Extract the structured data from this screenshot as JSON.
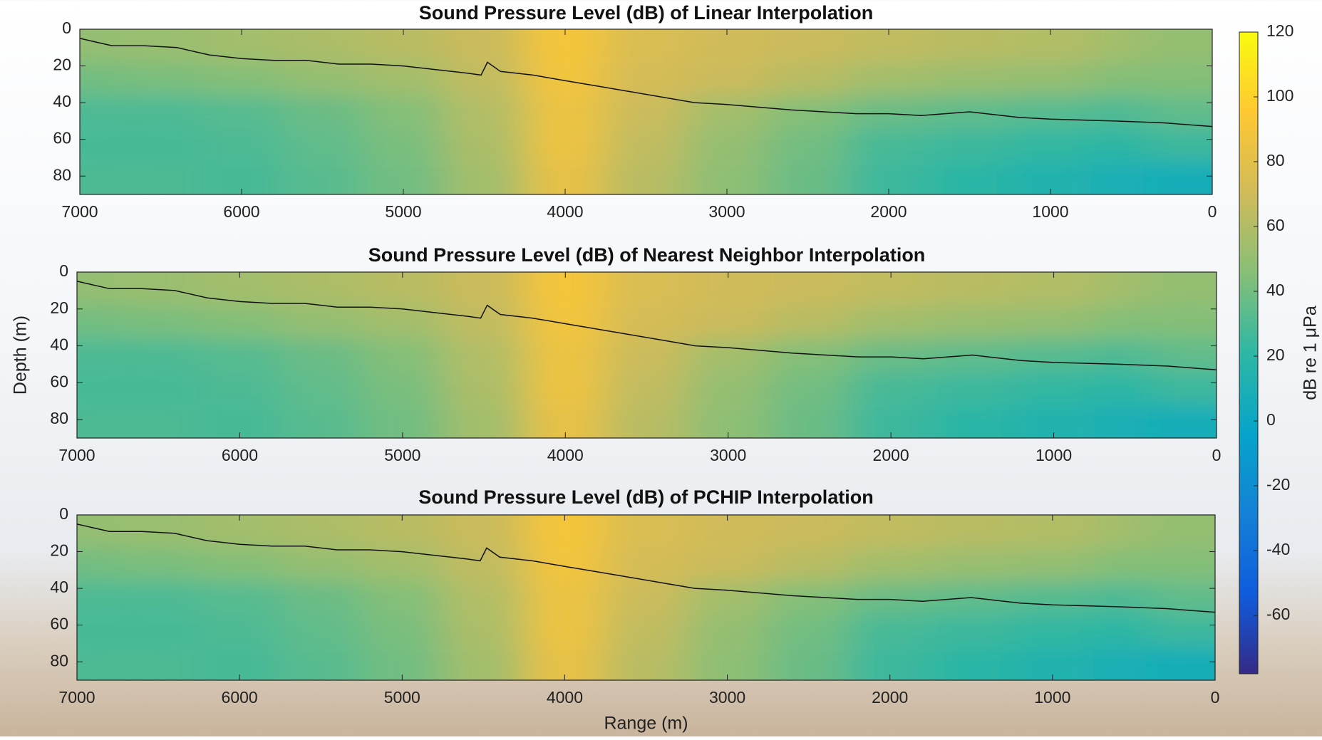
{
  "chart_data": [
    {
      "type": "heatmap",
      "title": "Sound Pressure Level (dB) of Linear Interpolation",
      "xlim": [
        7000,
        0
      ],
      "ylim": [
        90,
        0
      ],
      "xticks": [
        7000,
        6000,
        5000,
        4000,
        3000,
        2000,
        1000,
        0
      ],
      "yticks": [
        0,
        20,
        40,
        60,
        80
      ],
      "x": [
        7000,
        6500,
        6000,
        5500,
        5000,
        4500,
        4000,
        3500,
        3000,
        2500,
        2000,
        1500,
        1000,
        500,
        0
      ],
      "y": [
        9,
        27,
        45,
        63,
        81
      ],
      "z": [
        [
          50,
          52,
          55,
          58,
          62,
          68,
          90,
          75,
          70,
          68,
          65,
          62,
          60,
          55,
          50
        ],
        [
          40,
          42,
          45,
          50,
          55,
          65,
          88,
          72,
          68,
          62,
          55,
          52,
          50,
          45,
          45
        ],
        [
          30,
          30,
          32,
          38,
          45,
          60,
          85,
          68,
          55,
          45,
          38,
          35,
          32,
          30,
          35
        ],
        [
          28,
          28,
          30,
          35,
          42,
          58,
          85,
          65,
          50,
          40,
          28,
          25,
          22,
          20,
          25
        ],
        [
          30,
          30,
          28,
          33,
          40,
          55,
          82,
          62,
          48,
          38,
          25,
          20,
          15,
          10,
          8
        ]
      ],
      "contour": {
        "color": "#111111",
        "x": [
          7000,
          6800,
          6600,
          6400,
          6200,
          6000,
          5800,
          5600,
          5400,
          5200,
          5000,
          4800,
          4600,
          4520,
          4480,
          4400,
          4200,
          4000,
          3800,
          3600,
          3400,
          3200,
          3000,
          2600,
          2200,
          2000,
          1800,
          1500,
          1200,
          1000,
          600,
          300,
          0
        ],
        "y": [
          5,
          9,
          9,
          10,
          14,
          16,
          17,
          17,
          19,
          19,
          20,
          22,
          24,
          25,
          18,
          23,
          25,
          28,
          31,
          34,
          37,
          40,
          41,
          44,
          46,
          46,
          47,
          45,
          48,
          49,
          50,
          51,
          53
        ]
      }
    },
    {
      "type": "heatmap",
      "title": "Sound Pressure Level (dB) of Nearest Neighbor Interpolation",
      "ylabel": "Depth (m)",
      "xlim": [
        7000,
        0
      ],
      "ylim": [
        90,
        0
      ],
      "xticks": [
        7000,
        6000,
        5000,
        4000,
        3000,
        2000,
        1000,
        0
      ],
      "yticks": [
        0,
        20,
        40,
        60,
        80
      ],
      "x": [
        7000,
        6500,
        6000,
        5500,
        5000,
        4500,
        4000,
        3500,
        3000,
        2500,
        2000,
        1500,
        1000,
        500,
        0
      ],
      "y": [
        9,
        27,
        45,
        63,
        81
      ],
      "z": [
        [
          50,
          52,
          55,
          58,
          62,
          68,
          90,
          75,
          70,
          68,
          65,
          62,
          60,
          55,
          50
        ],
        [
          40,
          42,
          45,
          50,
          55,
          65,
          88,
          72,
          68,
          62,
          55,
          52,
          50,
          45,
          45
        ],
        [
          30,
          30,
          32,
          38,
          45,
          60,
          85,
          68,
          55,
          45,
          38,
          35,
          32,
          30,
          35
        ],
        [
          28,
          28,
          30,
          35,
          42,
          58,
          85,
          65,
          50,
          40,
          28,
          25,
          22,
          20,
          25
        ],
        [
          30,
          30,
          28,
          33,
          40,
          55,
          82,
          62,
          48,
          38,
          25,
          20,
          15,
          10,
          8
        ]
      ],
      "contour": {
        "color": "#111111",
        "x": [
          7000,
          6800,
          6600,
          6400,
          6200,
          6000,
          5800,
          5600,
          5400,
          5200,
          5000,
          4800,
          4600,
          4520,
          4480,
          4400,
          4200,
          4000,
          3800,
          3600,
          3400,
          3200,
          3000,
          2600,
          2200,
          2000,
          1800,
          1500,
          1200,
          1000,
          600,
          300,
          0
        ],
        "y": [
          5,
          9,
          9,
          10,
          14,
          16,
          17,
          17,
          19,
          19,
          20,
          22,
          24,
          25,
          18,
          23,
          25,
          28,
          31,
          34,
          37,
          40,
          41,
          44,
          46,
          46,
          47,
          45,
          48,
          49,
          50,
          51,
          53
        ]
      }
    },
    {
      "type": "heatmap",
      "title": "Sound Pressure Level (dB) of PCHIP Interpolation",
      "xlabel": "Range (m)",
      "xlim": [
        7000,
        0
      ],
      "ylim": [
        90,
        0
      ],
      "xticks": [
        7000,
        6000,
        5000,
        4000,
        3000,
        2000,
        1000,
        0
      ],
      "yticks": [
        0,
        20,
        40,
        60,
        80
      ],
      "x": [
        7000,
        6500,
        6000,
        5500,
        5000,
        4500,
        4000,
        3500,
        3000,
        2500,
        2000,
        1500,
        1000,
        500,
        0
      ],
      "y": [
        9,
        27,
        45,
        63,
        81
      ],
      "z": [
        [
          50,
          52,
          55,
          58,
          62,
          68,
          90,
          75,
          70,
          68,
          65,
          62,
          60,
          55,
          50
        ],
        [
          40,
          42,
          45,
          50,
          55,
          65,
          88,
          72,
          68,
          62,
          55,
          52,
          50,
          45,
          45
        ],
        [
          30,
          30,
          32,
          38,
          45,
          60,
          85,
          68,
          55,
          45,
          38,
          35,
          32,
          30,
          35
        ],
        [
          28,
          28,
          30,
          35,
          42,
          58,
          85,
          65,
          50,
          40,
          28,
          25,
          22,
          20,
          25
        ],
        [
          30,
          30,
          28,
          33,
          40,
          55,
          82,
          62,
          48,
          38,
          25,
          20,
          15,
          10,
          8
        ]
      ],
      "contour": {
        "color": "#111111",
        "x": [
          7000,
          6800,
          6600,
          6400,
          6200,
          6000,
          5800,
          5600,
          5400,
          5200,
          5000,
          4800,
          4600,
          4520,
          4480,
          4400,
          4200,
          4000,
          3800,
          3600,
          3400,
          3200,
          3000,
          2600,
          2200,
          2000,
          1800,
          1500,
          1200,
          1000,
          600,
          300,
          0
        ],
        "y": [
          5,
          9,
          9,
          10,
          14,
          16,
          17,
          17,
          19,
          19,
          20,
          22,
          24,
          25,
          18,
          23,
          25,
          28,
          31,
          34,
          37,
          40,
          41,
          44,
          46,
          46,
          47,
          45,
          48,
          49,
          50,
          51,
          53
        ]
      }
    },
    {
      "type": "colorbar",
      "label": "dB re 1 μPa",
      "ylim": [
        -78,
        120
      ],
      "yticks": [
        -60,
        -40,
        -20,
        0,
        20,
        40,
        60,
        80,
        100,
        120
      ],
      "colormap": [
        "#352a87",
        "#0f5cdd",
        "#1481d6",
        "#06a4ca",
        "#2eb7a4",
        "#87bf77",
        "#d1bb59",
        "#fec832",
        "#f9fb0e"
      ]
    }
  ]
}
